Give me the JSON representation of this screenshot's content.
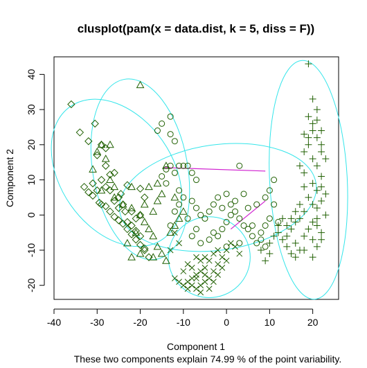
{
  "chart_data": {
    "type": "scatter",
    "title": "clusplot(pam(x = data.dist, k = 5, diss = F))",
    "xlabel": "Component 1",
    "ylabel": "Component 2",
    "subtitle": "These two components explain 74.99 % of the point variability.",
    "xlim": [
      -40,
      26
    ],
    "ylim": [
      -24,
      45
    ],
    "x_ticks": [
      -40,
      -30,
      -20,
      -10,
      0,
      10,
      20
    ],
    "y_ticks": [
      -20,
      -10,
      0,
      10,
      20,
      30,
      40
    ],
    "grid": false,
    "colors": {
      "points": "#1f5f00",
      "ellipses": "#33e5ea",
      "lines": "#d020d0"
    },
    "clusters": [
      {
        "symbol": "diamond",
        "ellipse": {
          "cx": -25.5,
          "cy": 12,
          "rx": 13,
          "ry": 23,
          "angle_deg": -35
        },
        "points": [
          [
            -36,
            31.5
          ],
          [
            -34,
            23.5
          ],
          [
            -32,
            21
          ],
          [
            -30.5,
            26
          ],
          [
            -29,
            20
          ],
          [
            -28,
            19
          ],
          [
            -30,
            17
          ],
          [
            -28,
            14
          ],
          [
            -27,
            11.5
          ],
          [
            -26,
            12
          ],
          [
            -29,
            10
          ],
          [
            -31,
            9
          ],
          [
            -33,
            8
          ],
          [
            -32,
            6.5
          ],
          [
            -31,
            5.5
          ],
          [
            -29.5,
            3.5
          ],
          [
            -28,
            2.5
          ],
          [
            -27,
            1
          ],
          [
            -26,
            -0.5
          ],
          [
            -25,
            -1.5
          ],
          [
            -24,
            -2.5
          ],
          [
            -23,
            -4
          ],
          [
            -22,
            -5.5
          ],
          [
            -21,
            -7
          ],
          [
            -20,
            -8.5
          ],
          [
            -19,
            -10
          ],
          [
            -18,
            -12
          ],
          [
            -25,
            5
          ],
          [
            -24,
            3
          ],
          [
            -22,
            1
          ],
          [
            -21,
            -1
          ],
          [
            -27,
            7
          ],
          [
            -23,
            8.5
          ],
          [
            -20,
            7.5
          ],
          [
            -19,
            5
          ],
          [
            -26,
            4
          ],
          [
            -24.5,
            6
          ],
          [
            -23,
            -2
          ],
          [
            -22,
            -3
          ],
          [
            -21,
            -4.5
          ],
          [
            -20,
            -6
          ],
          [
            -28,
            8
          ],
          [
            -30,
            7
          ],
          [
            -29,
            3
          ],
          [
            -25,
            2
          ],
          [
            -23.5,
            1
          ],
          [
            -20,
            0
          ],
          [
            -19,
            -9.5
          ]
        ]
      },
      {
        "symbol": "triangle",
        "ellipse": {
          "cx": -20,
          "cy": 13,
          "rx": 11,
          "ry": 26,
          "angle_deg": -10
        },
        "points": [
          [
            -20,
            37
          ],
          [
            -29,
            20
          ],
          [
            -27,
            20
          ],
          [
            -30,
            18
          ],
          [
            -28,
            16
          ],
          [
            -31,
            13
          ],
          [
            -27,
            10
          ],
          [
            -26,
            8
          ],
          [
            -29,
            7
          ],
          [
            -26,
            5
          ],
          [
            -24,
            3
          ],
          [
            -22,
            2
          ],
          [
            -20,
            0
          ],
          [
            -19,
            -2
          ],
          [
            -18,
            -4
          ],
          [
            -17,
            -6
          ],
          [
            -16,
            -9
          ],
          [
            -15,
            -11
          ],
          [
            -14,
            -13
          ],
          [
            -17,
            -12
          ],
          [
            -20,
            -11
          ],
          [
            -13,
            -5
          ],
          [
            -12,
            -3
          ],
          [
            -11,
            -1
          ],
          [
            -10,
            1
          ],
          [
            -15,
            6
          ],
          [
            -12,
            5
          ],
          [
            -16,
            9
          ],
          [
            -14,
            14
          ],
          [
            -22,
            8
          ],
          [
            -18,
            8
          ],
          [
            -16,
            4
          ],
          [
            -19,
            3
          ],
          [
            -17,
            1
          ],
          [
            -21,
            -5
          ],
          [
            -23,
            -8
          ],
          [
            -22,
            -12
          ]
        ]
      },
      {
        "symbol": "circle",
        "ellipse": {
          "cx": -2,
          "cy": 5,
          "rx": 23,
          "ry": 15,
          "angle_deg": -8
        },
        "points": [
          [
            -13,
            28
          ],
          [
            -15,
            26
          ],
          [
            -16,
            24
          ],
          [
            -13,
            23
          ],
          [
            -12,
            21
          ],
          [
            -8,
            12
          ],
          [
            -7,
            10
          ],
          [
            -13,
            14
          ],
          [
            -14,
            13
          ],
          [
            -12,
            12
          ],
          [
            -11,
            14
          ],
          [
            -10,
            14
          ],
          [
            -9,
            14
          ],
          [
            -15,
            11
          ],
          [
            -14,
            9
          ],
          [
            -11,
            7
          ],
          [
            -10,
            5
          ],
          [
            -8,
            4
          ],
          [
            -7,
            2
          ],
          [
            -6,
            0
          ],
          [
            -5,
            -1
          ],
          [
            -12,
            1
          ],
          [
            -9,
            -1
          ],
          [
            -7,
            -4
          ],
          [
            -8,
            -6
          ],
          [
            -6,
            -8
          ],
          [
            -4,
            -7
          ],
          [
            -3,
            -5
          ],
          [
            -1,
            -4
          ],
          [
            0,
            -2
          ],
          [
            1,
            0
          ],
          [
            2,
            1
          ],
          [
            3,
            -1
          ],
          [
            4,
            -3
          ],
          [
            5,
            -4
          ],
          [
            6,
            -6
          ],
          [
            7,
            -8
          ],
          [
            8,
            -5
          ],
          [
            9,
            -3
          ],
          [
            10,
            -1
          ],
          [
            5,
            2
          ],
          [
            7,
            3
          ],
          [
            9,
            5
          ],
          [
            10,
            7
          ],
          [
            11,
            10
          ],
          [
            3,
            14
          ],
          [
            0,
            6
          ],
          [
            -2,
            5
          ],
          [
            -3,
            3
          ],
          [
            1,
            3
          ],
          [
            4,
            6
          ],
          [
            2,
            4
          ],
          [
            -4,
            1
          ],
          [
            -1,
            2
          ],
          [
            6,
            -3
          ],
          [
            8,
            -7
          ],
          [
            3,
            -8
          ],
          [
            0,
            -9
          ],
          [
            -2,
            -6
          ],
          [
            -13,
            -3
          ],
          [
            -11,
            3
          ],
          [
            11,
            3
          ],
          [
            12,
            -2
          ],
          [
            9,
            -9
          ]
        ]
      },
      {
        "symbol": "x",
        "ellipse": {
          "cx": -4,
          "cy": -12,
          "rx": 9.5,
          "ry": 11.5,
          "angle_deg": 0
        },
        "points": [
          [
            -5,
            -15
          ],
          [
            -6,
            -16
          ],
          [
            -7,
            -17
          ],
          [
            -8,
            -18
          ],
          [
            -9,
            -19
          ],
          [
            -4,
            -18
          ],
          [
            -5,
            -19
          ],
          [
            -6,
            -20
          ],
          [
            -7,
            -21
          ],
          [
            -3,
            -16
          ],
          [
            -2,
            -14
          ],
          [
            -1,
            -12
          ],
          [
            0,
            -10
          ],
          [
            -4,
            -13
          ],
          [
            -5,
            -12
          ],
          [
            -3,
            -11
          ],
          [
            -6,
            -13
          ],
          [
            -8,
            -15
          ],
          [
            -10,
            -16
          ],
          [
            -9,
            -14
          ],
          [
            -7,
            -12
          ],
          [
            -2,
            -17
          ],
          [
            -3,
            -19
          ],
          [
            -4,
            -21
          ],
          [
            -8,
            -20
          ],
          [
            -9,
            -21
          ],
          [
            -6,
            -22
          ],
          [
            -5,
            -17
          ],
          [
            -7,
            -18
          ],
          [
            -1,
            -15
          ],
          [
            0,
            -13
          ],
          [
            -2,
            -10
          ],
          [
            1,
            -8
          ],
          [
            2,
            -9
          ],
          [
            3,
            -11
          ],
          [
            -10,
            -20
          ],
          [
            -11,
            -19
          ],
          [
            -12,
            -18
          ],
          [
            -13,
            -10
          ],
          [
            -11,
            -8
          ],
          [
            -12,
            -5
          ]
        ]
      },
      {
        "symbol": "plus",
        "ellipse": {
          "cx": 19,
          "cy": 10,
          "rx": 9,
          "ry": 34,
          "angle_deg": -3
        },
        "points": [
          [
            19,
            43
          ],
          [
            20,
            33
          ],
          [
            21,
            30
          ],
          [
            19,
            28
          ],
          [
            20,
            26
          ],
          [
            22,
            24
          ],
          [
            18,
            23
          ],
          [
            21,
            22
          ],
          [
            19,
            20
          ],
          [
            22,
            18
          ],
          [
            20,
            16
          ],
          [
            21,
            14
          ],
          [
            18,
            12
          ],
          [
            22,
            11
          ],
          [
            20,
            9
          ],
          [
            21,
            7
          ],
          [
            19,
            5
          ],
          [
            22,
            4
          ],
          [
            20,
            3
          ],
          [
            21,
            2
          ],
          [
            18,
            1
          ],
          [
            23,
            0
          ],
          [
            17,
            -1
          ],
          [
            20,
            -2
          ],
          [
            21,
            -3
          ],
          [
            19,
            -4
          ],
          [
            22,
            -5
          ],
          [
            18,
            -6
          ],
          [
            20,
            -7
          ],
          [
            16,
            -8
          ],
          [
            21,
            -9
          ],
          [
            17,
            -10
          ],
          [
            15,
            -11
          ],
          [
            14,
            -9
          ],
          [
            13,
            -7
          ],
          [
            12,
            -5
          ],
          [
            14,
            -3
          ],
          [
            15,
            -1
          ],
          [
            16,
            1
          ],
          [
            13,
            -1
          ],
          [
            12,
            -3
          ],
          [
            11,
            -6
          ],
          [
            10,
            -8
          ],
          [
            14,
            -6
          ],
          [
            15,
            -4
          ],
          [
            16,
            -2
          ],
          [
            17,
            3
          ],
          [
            18,
            8
          ],
          [
            17,
            14
          ],
          [
            18,
            18
          ],
          [
            19,
            22
          ],
          [
            20,
            24
          ],
          [
            21,
            27
          ],
          [
            22,
            20
          ],
          [
            23,
            16
          ],
          [
            22,
            8
          ],
          [
            23,
            6
          ],
          [
            21,
            -1
          ],
          [
            22,
            -7
          ],
          [
            18,
            -10
          ],
          [
            16,
            -12
          ],
          [
            9,
            -13
          ],
          [
            10,
            -11
          ],
          [
            8,
            -10
          ],
          [
            20,
            -12
          ]
        ]
      }
    ],
    "connecting_lines": [
      {
        "from": [
          -14.5,
          13.5
        ],
        "to": [
          9,
          12.5
        ]
      },
      {
        "from": [
          1,
          -4
        ],
        "to": [
          9,
          4
        ]
      }
    ]
  }
}
